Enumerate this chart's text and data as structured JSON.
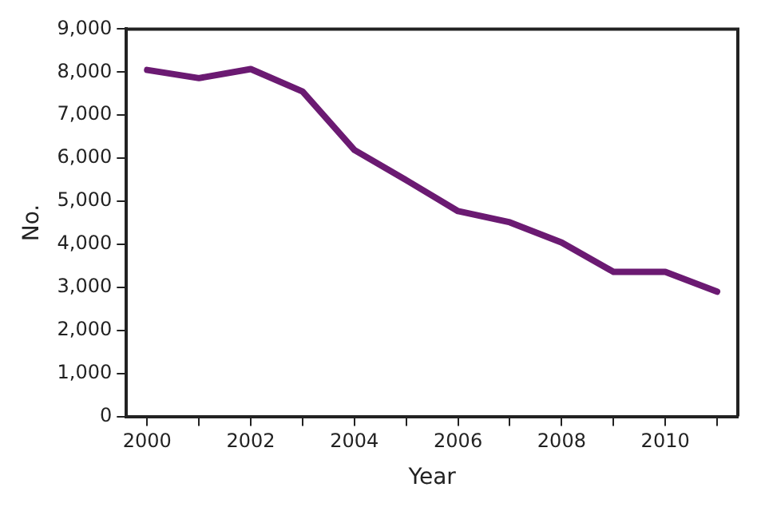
{
  "chart_data": {
    "type": "line",
    "xlabel": "Year",
    "ylabel": "No.",
    "x": [
      2000,
      2001,
      2002,
      2003,
      2004,
      2005,
      2006,
      2007,
      2008,
      2009,
      2010,
      2011
    ],
    "series": [
      {
        "color": "#6b1a72",
        "values": [
          8050,
          7860,
          8070,
          7550,
          6190,
          5490,
          4770,
          4510,
          4040,
          3360,
          3360,
          2900
        ]
      }
    ],
    "xlim": [
      1999.6,
      2011.4
    ],
    "xticks": [
      2000,
      {
        "value": 2001,
        "label": null
      },
      2002,
      {
        "value": 2003,
        "label": null
      },
      2004,
      {
        "value": 2005,
        "label": null
      },
      2006,
      {
        "value": 2007,
        "label": null
      },
      2008,
      {
        "value": 2009,
        "label": null
      },
      2010,
      {
        "value": 2011,
        "label": null
      }
    ],
    "ylim": [
      0,
      9000
    ],
    "yticks": [
      0,
      {
        "value": 1000,
        "label": "1,000"
      },
      {
        "value": 2000,
        "label": "2,000"
      },
      {
        "value": 3000,
        "label": "3,000"
      },
      {
        "value": 4000,
        "label": "4,000"
      },
      {
        "value": 5000,
        "label": "5,000"
      },
      {
        "value": 6000,
        "label": "6,000"
      },
      {
        "value": 7000,
        "label": "7,000"
      },
      {
        "value": 8000,
        "label": "8,000"
      },
      {
        "value": 9000,
        "label": "9,000"
      }
    ],
    "grid": false,
    "legend": false,
    "marker": "none",
    "line_style": "solid"
  }
}
